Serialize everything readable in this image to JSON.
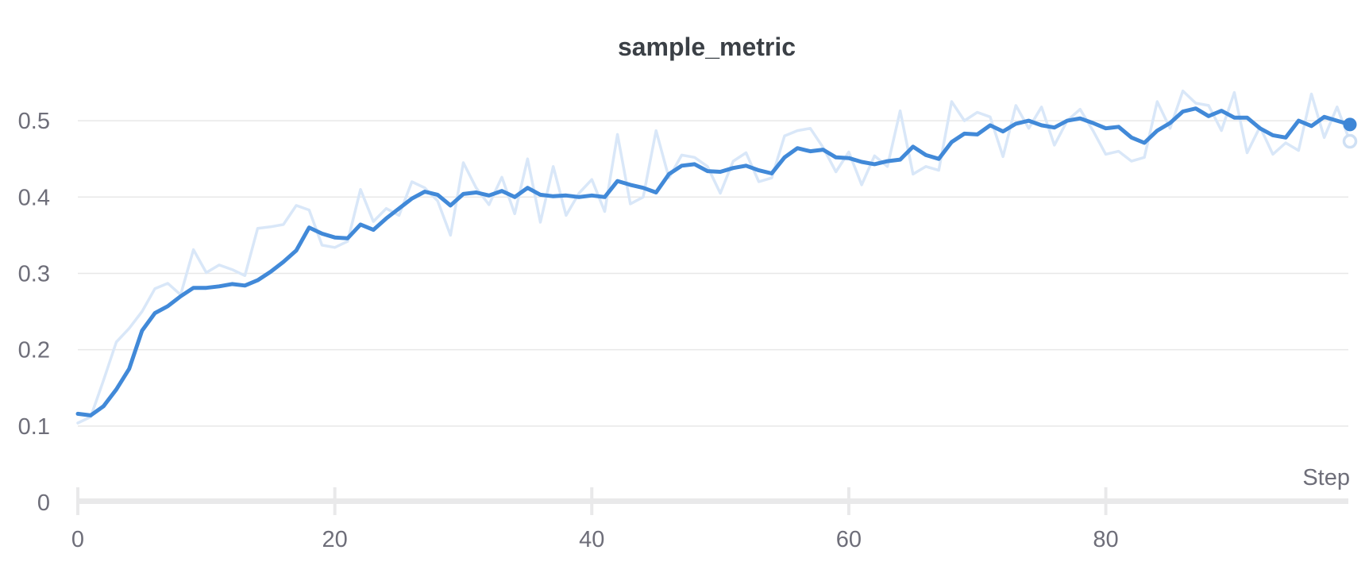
{
  "page": {
    "background": "#ffffff"
  },
  "colors": {
    "title_text": "#3b4046",
    "tick_label_text": "#6e6e79",
    "gridline": "#e8e8e8",
    "axis_bar": "#e9e9ea",
    "tick_mark": "#e9e9ea",
    "raw_series": "#d9e7f8",
    "smoothed_series": "#4189d8",
    "raw_endpoint_ring": "#cfe0f4",
    "endpoint_fill": "#3e86d6"
  },
  "chart_data": {
    "type": "line",
    "title": "sample_metric",
    "xlabel": "Step",
    "ylabel": "",
    "xlim": [
      0,
      99
    ],
    "ylim": [
      0,
      0.55
    ],
    "grid": "horizontal",
    "legend": "none",
    "x_start": 0,
    "x_increment": 1,
    "x_ticks": {
      "values": [
        0,
        20,
        40,
        60,
        80
      ],
      "labels": [
        "0",
        "20",
        "40",
        "60",
        "80"
      ]
    },
    "y_ticks": {
      "values": [
        0,
        0.1,
        0.2,
        0.3,
        0.4,
        0.5
      ],
      "labels": [
        "0",
        "0.1",
        "0.2",
        "0.3",
        "0.4",
        "0.5"
      ]
    },
    "series": [
      {
        "name": "sample_metric (raw)",
        "role": "raw",
        "color": "#d9e7f8",
        "stroke_width": 3.5,
        "end_marker": "ring",
        "values": [
          0.104,
          0.112,
          0.16,
          0.21,
          0.228,
          0.25,
          0.28,
          0.287,
          0.272,
          0.331,
          0.301,
          0.311,
          0.305,
          0.297,
          0.359,
          0.361,
          0.364,
          0.389,
          0.383,
          0.337,
          0.334,
          0.342,
          0.41,
          0.368,
          0.385,
          0.376,
          0.42,
          0.412,
          0.395,
          0.35,
          0.445,
          0.412,
          0.39,
          0.426,
          0.378,
          0.45,
          0.367,
          0.44,
          0.376,
          0.405,
          0.423,
          0.381,
          0.482,
          0.391,
          0.4,
          0.487,
          0.425,
          0.455,
          0.452,
          0.44,
          0.405,
          0.447,
          0.458,
          0.42,
          0.425,
          0.48,
          0.487,
          0.49,
          0.465,
          0.433,
          0.459,
          0.416,
          0.454,
          0.44,
          0.513,
          0.43,
          0.44,
          0.435,
          0.525,
          0.5,
          0.511,
          0.505,
          0.453,
          0.52,
          0.49,
          0.518,
          0.468,
          0.5,
          0.515,
          0.487,
          0.456,
          0.46,
          0.447,
          0.452,
          0.525,
          0.49,
          0.539,
          0.523,
          0.52,
          0.487,
          0.537,
          0.458,
          0.492,
          0.456,
          0.471,
          0.461,
          0.535,
          0.478,
          0.518,
          0.473
        ]
      },
      {
        "name": "sample_metric (smoothed)",
        "role": "smoothed",
        "color": "#4189d8",
        "stroke_width": 5,
        "end_marker": "dot",
        "values": [
          0.116,
          0.114,
          0.126,
          0.148,
          0.175,
          0.225,
          0.248,
          0.257,
          0.27,
          0.281,
          0.281,
          0.283,
          0.286,
          0.284,
          0.291,
          0.302,
          0.315,
          0.33,
          0.36,
          0.352,
          0.347,
          0.346,
          0.364,
          0.357,
          0.372,
          0.385,
          0.398,
          0.407,
          0.403,
          0.389,
          0.404,
          0.406,
          0.402,
          0.408,
          0.4,
          0.412,
          0.403,
          0.401,
          0.402,
          0.4,
          0.402,
          0.4,
          0.421,
          0.416,
          0.412,
          0.406,
          0.43,
          0.441,
          0.443,
          0.434,
          0.433,
          0.438,
          0.441,
          0.435,
          0.431,
          0.452,
          0.464,
          0.46,
          0.462,
          0.452,
          0.451,
          0.446,
          0.443,
          0.447,
          0.449,
          0.466,
          0.455,
          0.45,
          0.472,
          0.483,
          0.482,
          0.494,
          0.486,
          0.496,
          0.5,
          0.494,
          0.491,
          0.5,
          0.503,
          0.497,
          0.49,
          0.492,
          0.478,
          0.471,
          0.487,
          0.497,
          0.512,
          0.516,
          0.506,
          0.513,
          0.504,
          0.504,
          0.49,
          0.481,
          0.478,
          0.5,
          0.493,
          0.505,
          0.5,
          0.495
        ]
      }
    ],
    "end_values": {
      "smoothed": 0.495,
      "raw": 0.473
    }
  }
}
